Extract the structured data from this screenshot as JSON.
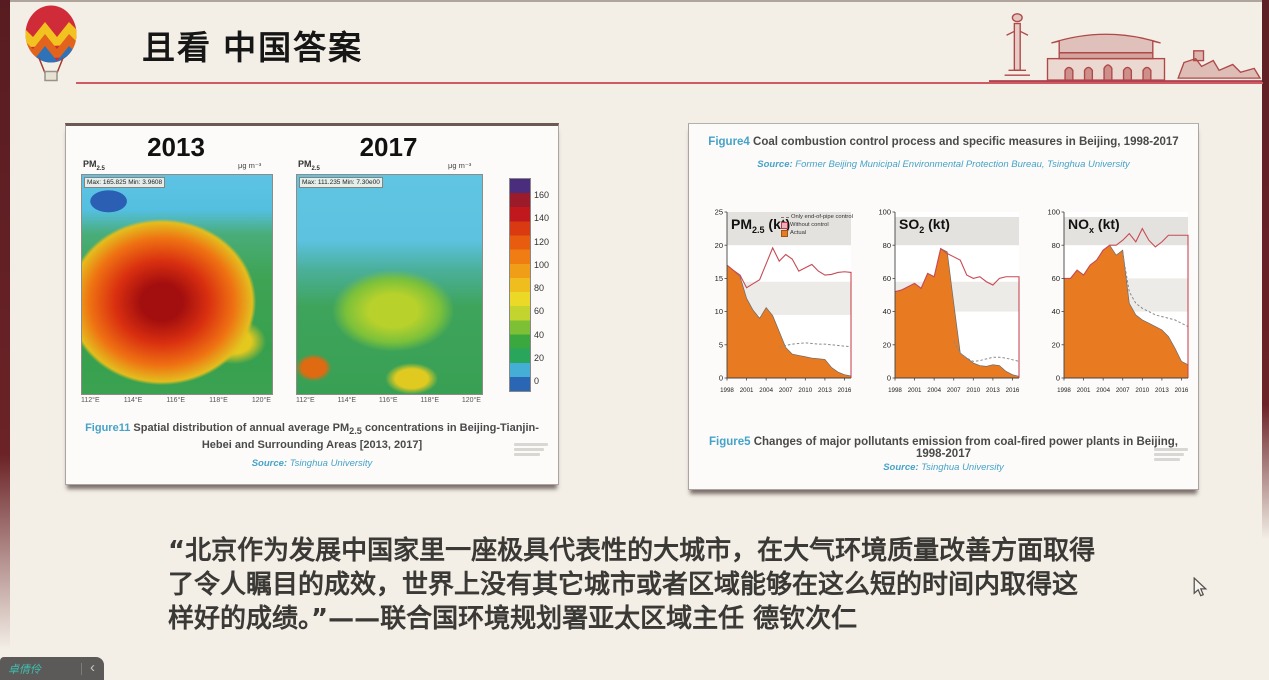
{
  "colors": {
    "background": "#f3efe7",
    "edge_maroon": "#5e2024",
    "header_underline": "#cf5a64",
    "caption_blue": "#45a3c9",
    "actual_orange": "#e87a22",
    "without_control_red": "#c84a55",
    "end_of_pipe_gray": "#8a8a8a",
    "art_red": "#a83636"
  },
  "header": {
    "title": "且看 中国答案"
  },
  "left_figure": {
    "maps": [
      {
        "year": "2013",
        "pm_main": "PM",
        "pm_sub": "2.5",
        "unit": "μg m⁻³",
        "minmax": "Max: 165.825  Min: 3.9608"
      },
      {
        "year": "2017",
        "pm_main": "PM",
        "pm_sub": "2.5",
        "unit": "μg m⁻³",
        "minmax": "Max: 111.235  Min: 7.30e00"
      }
    ],
    "lon_labels": [
      "112°E",
      "114°E",
      "116°E",
      "118°E",
      "120°E"
    ],
    "colorbar_ticks": [
      "160",
      "140",
      "120",
      "100",
      "80",
      "60",
      "40",
      "20",
      "0"
    ],
    "caption_fig": "Figure11",
    "caption_pre": " Spatial distribution of annual average PM",
    "caption_sub": "2.5",
    "caption_post": " concentrations in Beijing-Tianjin-Hebei and Surrounding Areas [2013, 2017]",
    "source_label": "Source:",
    "source_text": " Tsinghua University"
  },
  "right_figure": {
    "caption_top_fig": "Figure4",
    "caption_top_text": " Coal combustion control process and specific measures in Beijing, 1998-2017",
    "source_top_label": "Source:",
    "source_top_text": " Former Beijing Municipal Environmental Protection Bureau, Tsinghua University",
    "caption_bottom_fig": "Figure5",
    "caption_bottom_text": " Changes of major pollutants emission from coal-fired power plants in Beijing, 1998-2017",
    "source_bottom_label": "Source:",
    "source_bottom_text": " Tsinghua University",
    "legend": [
      "Only end-of-pipe control",
      "Without control",
      "Actual"
    ]
  },
  "chart_data": [
    {
      "type": "heatmap",
      "title": "Spatial distribution of annual average PM2.5 concentrations in Beijing-Tianjin-Hebei and Surrounding Areas [2013, 2017]",
      "unit": "μg m⁻³",
      "panels": [
        {
          "year": 2013,
          "max": 165.825,
          "min": 3.9608
        },
        {
          "year": 2017,
          "max": 111.235,
          "min": 7.3
        }
      ],
      "colorbar_ticks": [
        160,
        140,
        120,
        100,
        80,
        60,
        40,
        20,
        0
      ],
      "x_ticks": [
        "112°E",
        "114°E",
        "116°E",
        "118°E",
        "120°E"
      ],
      "source": "Tsinghua University"
    },
    {
      "type": "area",
      "label_main": "PM",
      "label_sub": "2.5",
      "label_rest": " (kt)",
      "ylim": [
        0,
        25
      ],
      "yticks": [
        0,
        5,
        10,
        15,
        20,
        25
      ],
      "x": [
        1998,
        1999,
        2000,
        2001,
        2002,
        2003,
        2004,
        2005,
        2006,
        2007,
        2008,
        2009,
        2010,
        2011,
        2012,
        2013,
        2014,
        2015,
        2016,
        2017
      ],
      "x_ticks": [
        1998,
        2001,
        2004,
        2007,
        2010,
        2013,
        2016
      ],
      "bands": [
        [
          20,
          25
        ],
        [
          9.5,
          14.5
        ]
      ],
      "series": [
        {
          "name": "Without control",
          "values": [
            17,
            16.2,
            15.5,
            13.6,
            14.2,
            14.8,
            17.2,
            19.6,
            17.6,
            18.6,
            17.9,
            16.1,
            16.6,
            17.1,
            16.1,
            15.5,
            15.6,
            15.9,
            16.0,
            15.9
          ]
        },
        {
          "name": "Only end-of-pipe control",
          "values": [
            null,
            null,
            null,
            null,
            null,
            null,
            null,
            null,
            4.6,
            4.9,
            5.1,
            5.2,
            5.3,
            5.2,
            5.1,
            5.1,
            5.0,
            4.9,
            4.8,
            4.7
          ]
        },
        {
          "name": "Actual",
          "values": [
            17,
            16.2,
            15.3,
            12.0,
            10.2,
            9.0,
            10.6,
            9.4,
            7.0,
            4.6,
            3.6,
            3.4,
            3.2,
            3.0,
            2.9,
            2.8,
            1.6,
            0.9,
            0.5,
            0.3
          ]
        }
      ]
    },
    {
      "type": "area",
      "label_main": "SO",
      "label_sub": "2",
      "label_rest": " (kt)",
      "ylim": [
        0,
        100
      ],
      "yticks": [
        0,
        20,
        40,
        60,
        80,
        100
      ],
      "x": [
        1998,
        1999,
        2000,
        2001,
        2002,
        2003,
        2004,
        2005,
        2006,
        2007,
        2008,
        2009,
        2010,
        2011,
        2012,
        2013,
        2014,
        2015,
        2016,
        2017
      ],
      "x_ticks": [
        1998,
        2001,
        2004,
        2007,
        2010,
        2013,
        2016
      ],
      "bands": [
        [
          80,
          97
        ],
        [
          40,
          58
        ]
      ],
      "series": [
        {
          "name": "Without control",
          "values": [
            52,
            53,
            55,
            57,
            54,
            63,
            61,
            78,
            75,
            73,
            71,
            62,
            60,
            61,
            58,
            56,
            60,
            61,
            61,
            61
          ]
        },
        {
          "name": "Only end-of-pipe control",
          "values": [
            null,
            null,
            null,
            null,
            null,
            null,
            null,
            null,
            null,
            22,
            15,
            12,
            10,
            10.5,
            11.5,
            12.5,
            12.5,
            12,
            11,
            10
          ]
        },
        {
          "name": "Actual",
          "values": [
            52,
            53,
            55,
            57,
            54,
            63,
            61,
            78,
            76,
            45,
            15,
            12,
            9,
            7.5,
            7,
            8,
            7.5,
            4,
            2,
            1
          ]
        }
      ]
    },
    {
      "type": "area",
      "label_main": "NO",
      "label_sub": "x",
      "label_rest": " (kt)",
      "ylim": [
        0,
        100
      ],
      "yticks": [
        0,
        20,
        40,
        60,
        80,
        100
      ],
      "x": [
        1998,
        1999,
        2000,
        2001,
        2002,
        2003,
        2004,
        2005,
        2006,
        2007,
        2008,
        2009,
        2010,
        2011,
        2012,
        2013,
        2014,
        2015,
        2016,
        2017
      ],
      "x_ticks": [
        1998,
        2001,
        2004,
        2007,
        2010,
        2013,
        2016
      ],
      "bands": [
        [
          80,
          97
        ],
        [
          40,
          60
        ]
      ],
      "series": [
        {
          "name": "Without control",
          "values": [
            60,
            60,
            65,
            62,
            68,
            71,
            77,
            80,
            80,
            83,
            87,
            82,
            90,
            83,
            79,
            82,
            86,
            86,
            86,
            86
          ]
        },
        {
          "name": "Only end-of-pipe control",
          "values": [
            null,
            null,
            null,
            null,
            null,
            null,
            null,
            null,
            null,
            75,
            52,
            45,
            42,
            40,
            38,
            37,
            36,
            35,
            33,
            31
          ]
        },
        {
          "name": "Actual",
          "values": [
            60,
            60,
            65,
            62,
            68,
            71,
            77,
            80,
            74,
            77,
            45,
            38,
            35,
            33,
            31,
            29,
            25,
            18,
            10,
            8
          ]
        }
      ]
    }
  ],
  "quote": {
    "line1": "“北京作为发展中国家里一座极具代表性的大城市，在大气环境质量改善方面取得",
    "line2": "了令人瞩目的成效，世界上没有其它城市或者区域能够在这么短的时间内取得这",
    "line3": "样好的成绩。”——联合国环境规划署亚太区域主任 德钦次仁"
  },
  "overlay": {
    "watermark": "卓倩伶",
    "chevron": "‹"
  }
}
